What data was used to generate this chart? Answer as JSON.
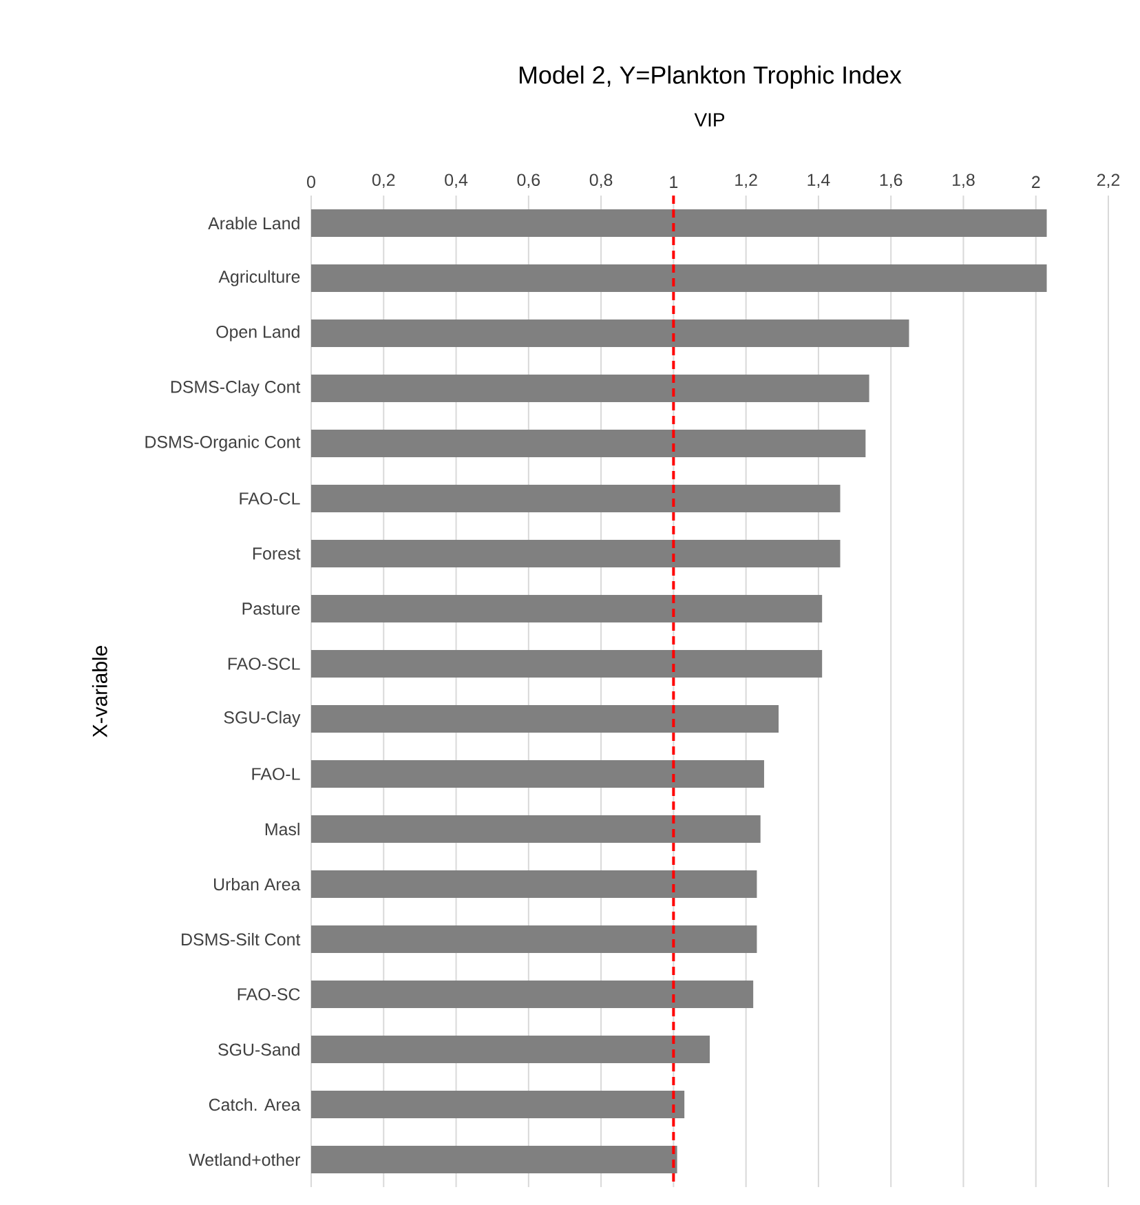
{
  "chart_data": {
    "type": "bar",
    "orientation": "horizontal",
    "title": "Model 2, Y=Plankton Trophic Index",
    "xlabel": "VIP",
    "ylabel": "X-variable",
    "categories": [
      "Arable Land",
      "Agriculture",
      "Open Land",
      "DSMS-Clay Cont",
      "DSMS-Organic Cont",
      "FAO-CL",
      "Forest",
      "Pasture",
      "FAO-SCL",
      "SGU-Clay",
      "FAO-L",
      "Masl",
      "Urban Area",
      "DSMS-Silt Cont",
      "FAO-SC",
      "SGU-Sand",
      "Catch. Area",
      "Wetland+other"
    ],
    "values": [
      2.03,
      2.03,
      1.65,
      1.54,
      1.53,
      1.46,
      1.46,
      1.41,
      1.41,
      1.29,
      1.25,
      1.24,
      1.23,
      1.23,
      1.22,
      1.1,
      1.03,
      1.01
    ],
    "color": "#808080",
    "xlim": [
      0,
      2.2
    ],
    "xticks": [
      0,
      {
        "value": 0.2,
        "label": "0,2"
      },
      {
        "value": 0.4,
        "label": "0,4"
      },
      {
        "value": 0.6,
        "label": "0,6"
      },
      {
        "value": 0.8,
        "label": "0,8"
      },
      1,
      {
        "value": 1.2,
        "label": "1,2"
      },
      {
        "value": 1.4,
        "label": "1,4"
      },
      {
        "value": 1.6,
        "label": "1,6"
      },
      {
        "value": 1.8,
        "label": "1,8"
      },
      2,
      {
        "value": 2.2,
        "label": "2,2"
      }
    ],
    "grid": "x",
    "ref_lines": [
      {
        "axis": "x",
        "value": 1,
        "color": "#ff0000",
        "line_style": "dashed"
      }
    ]
  }
}
